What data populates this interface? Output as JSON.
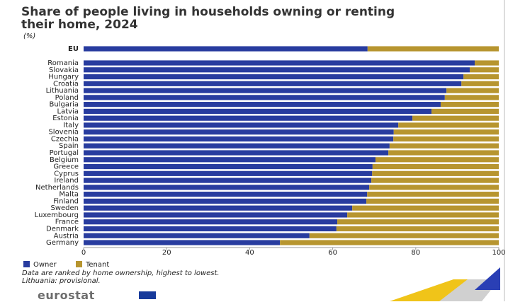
{
  "chart_data": {
    "type": "bar",
    "orientation": "horizontal",
    "stacked": true,
    "title": "Share of people living in households owning or renting their home, 2024",
    "subtitle": "(%)",
    "categories": [
      "EU",
      "Romania",
      "Slovakia",
      "Hungary",
      "Croatia",
      "Lithuania",
      "Poland",
      "Bulgaria",
      "Latvia",
      "Estonia",
      "Italy",
      "Slovenia",
      "Czechia",
      "Spain",
      "Portugal",
      "Belgium",
      "Greece",
      "Cyprus",
      "Ireland",
      "Netherlands",
      "Malta",
      "Finland",
      "Sweden",
      "Luxembourg",
      "France",
      "Denmark",
      "Austria",
      "Germany"
    ],
    "series": [
      {
        "name": "Owner",
        "color": "#283c9f",
        "values": [
          68.4,
          94.2,
          93.0,
          91.5,
          91.0,
          87.4,
          87.0,
          86.0,
          83.8,
          79.2,
          75.8,
          74.7,
          74.6,
          73.7,
          73.4,
          70.3,
          69.6,
          69.5,
          69.3,
          68.8,
          68.3,
          68.1,
          64.7,
          63.5,
          61.1,
          60.9,
          54.4,
          47.3
        ]
      },
      {
        "name": "Tenant",
        "color": "#b7952f",
        "values": [
          31.6,
          5.8,
          7.0,
          8.5,
          9.0,
          12.6,
          13.0,
          14.0,
          16.2,
          20.8,
          24.2,
          25.3,
          25.4,
          26.3,
          26.6,
          29.7,
          30.4,
          30.5,
          30.7,
          31.2,
          31.7,
          31.9,
          35.3,
          36.5,
          38.9,
          39.1,
          45.6,
          52.7
        ]
      }
    ],
    "xlim": [
      0,
      100
    ],
    "xticks": [
      0,
      20,
      40,
      60,
      80,
      100
    ],
    "grid": false,
    "legend": "bottom-left",
    "notes": [
      "Data are ranked by home ownership, highest to lowest.",
      "Lithuania: provisional."
    ],
    "logo": "eurostat"
  }
}
